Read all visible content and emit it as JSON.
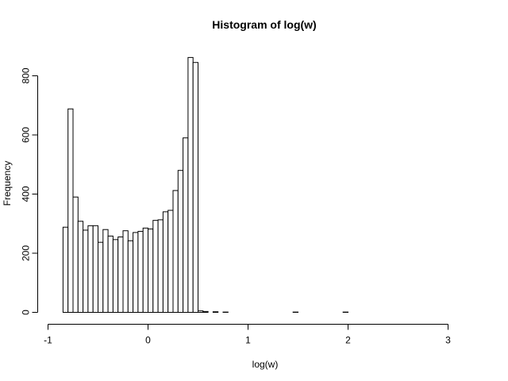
{
  "chart_data": {
    "type": "bar",
    "subtype": "histogram",
    "title": "Histogram of log(w)",
    "xlabel": "log(w)",
    "ylabel": "Frequency",
    "xlim": [
      -1,
      3.2
    ],
    "ylim": [
      0,
      870
    ],
    "x_ticks": [
      -1,
      0,
      1,
      2,
      3
    ],
    "y_ticks": [
      0,
      200,
      400,
      600,
      800
    ],
    "bin_start": -0.85,
    "bin_width": 0.05,
    "values": [
      288,
      688,
      390,
      308,
      278,
      293,
      293,
      237,
      280,
      258,
      246,
      255,
      276,
      242,
      270,
      274,
      285,
      282,
      311,
      313,
      340,
      345,
      412,
      480,
      590,
      862,
      845,
      5,
      3,
      0,
      2,
      0,
      1,
      0,
      0,
      0,
      0,
      0,
      0,
      0,
      0,
      0,
      0,
      0,
      0,
      0,
      1,
      0,
      0,
      0,
      0,
      0,
      0,
      0,
      0,
      0,
      1,
      0,
      0,
      0,
      0,
      0,
      0,
      0,
      0,
      0,
      0,
      0,
      0,
      0,
      0,
      0,
      0,
      0,
      0,
      0,
      0,
      0,
      0,
      0,
      0,
      0,
      0,
      0
    ],
    "bar_fill": "#ffffff",
    "bar_stroke": "#000000",
    "grid": false
  }
}
